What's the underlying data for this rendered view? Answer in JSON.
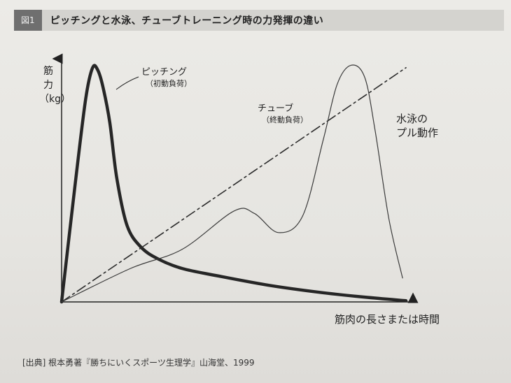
{
  "figure": {
    "badge": "図1",
    "title": "ピッチングと水泳、チューブトレーニング時の力発揮の違い"
  },
  "source": "[出典] 根本勇著『勝ちにいくスポーツ生理学』山海堂、1999",
  "chart_data": {
    "type": "line",
    "title": "ピッチングと水泳、チューブトレーニング時の力発揮の違い",
    "ylabel_lines": [
      "筋",
      "力",
      "（kg）"
    ],
    "xlabel": "筋肉の長さまたは時間",
    "xlim": [
      0,
      100
    ],
    "ylim": [
      0,
      100
    ],
    "ticks": "none",
    "grid": false,
    "legend": "none",
    "series": [
      {
        "label_main": "ピッチング",
        "label_sub": "（初動負荷）",
        "style": "thick",
        "color": "#262626",
        "x": [
          0,
          4,
          7,
          9,
          10.5,
          12,
          14,
          16,
          19,
          23,
          28,
          35,
          45,
          60,
          75,
          88,
          100
        ],
        "y": [
          0,
          50,
          85,
          98,
          97,
          90,
          75,
          52,
          32,
          23,
          18,
          14,
          11,
          7,
          4,
          2,
          0.5
        ]
      },
      {
        "label_main": "チューブ",
        "label_sub": "（終動負荷）",
        "style": "dash-dot",
        "color": "#2c2c2c",
        "x": [
          0,
          100
        ],
        "y": [
          0,
          98
        ]
      },
      {
        "label_main": "水泳の",
        "label_sub": "プル動作",
        "style": "thin",
        "color": "#3a3a3a",
        "x": [
          0,
          20,
          35,
          50,
          56,
          63,
          70,
          76,
          80,
          84,
          88,
          91,
          95,
          99
        ],
        "y": [
          0,
          14,
          22,
          38,
          37,
          29,
          36,
          68,
          91,
          99,
          94,
          72,
          35,
          10
        ]
      }
    ]
  }
}
